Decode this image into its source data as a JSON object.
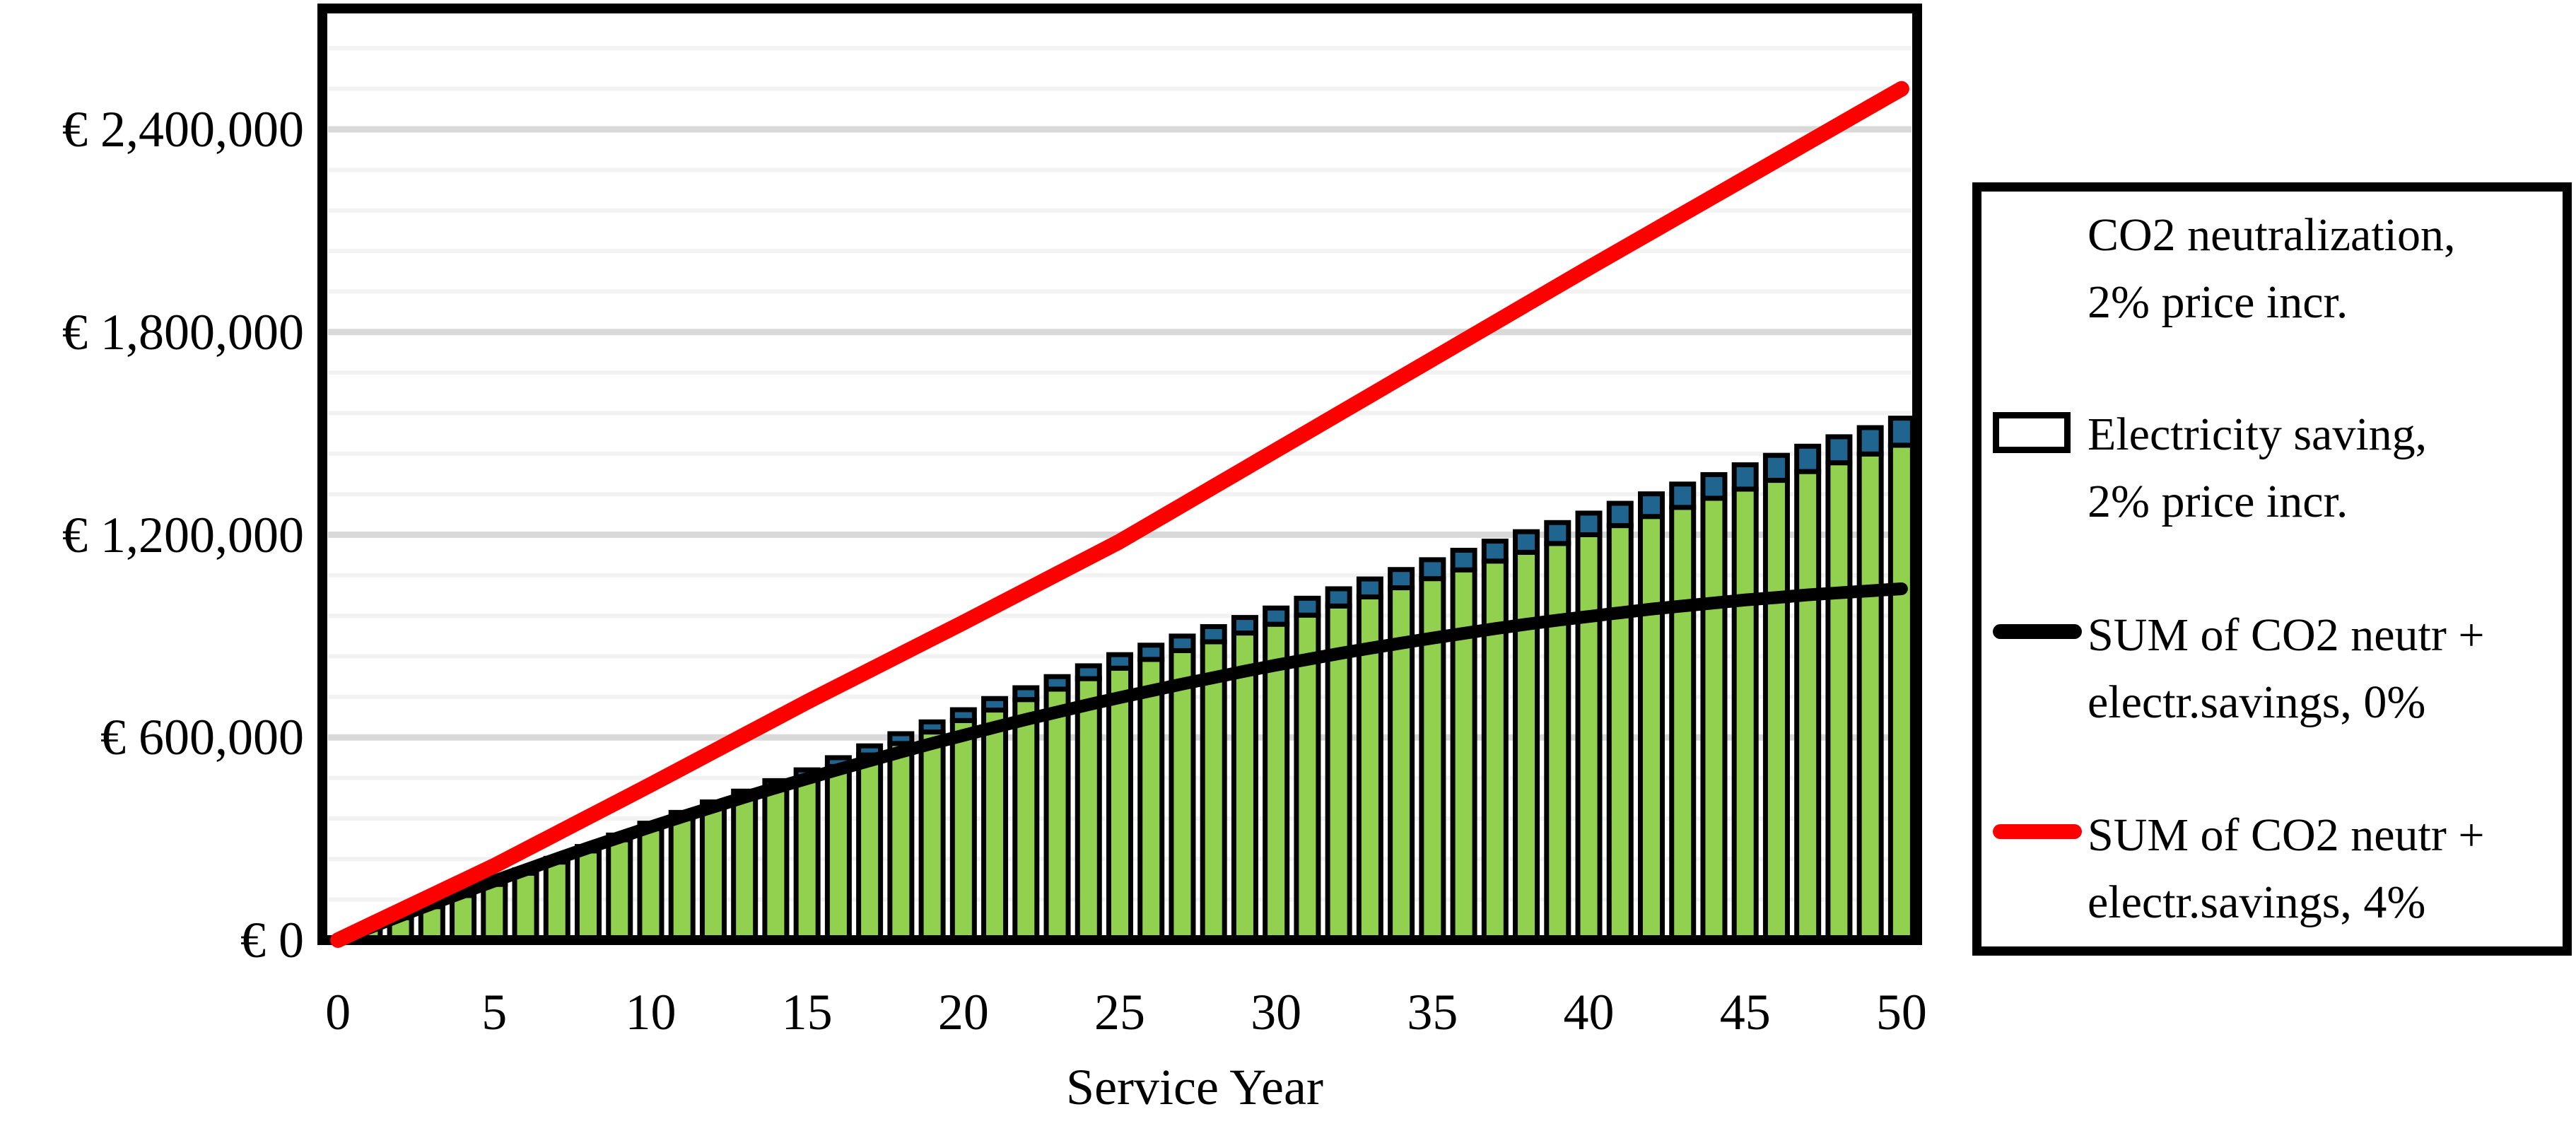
{
  "chart_data": {
    "type": "bar",
    "subtype": "stacked-bars-with-lines",
    "title": "",
    "xlabel": "Service Year",
    "ylabel": "",
    "x": [
      0,
      1,
      2,
      3,
      4,
      5,
      6,
      7,
      8,
      9,
      10,
      11,
      12,
      13,
      14,
      15,
      16,
      17,
      18,
      19,
      20,
      21,
      22,
      23,
      24,
      25,
      26,
      27,
      28,
      29,
      30,
      31,
      32,
      33,
      34,
      35,
      36,
      37,
      38,
      39,
      40,
      41,
      42,
      43,
      44,
      45,
      46,
      47,
      48,
      49,
      50
    ],
    "x_ticks": [
      0,
      5,
      10,
      15,
      20,
      25,
      30,
      35,
      40,
      45,
      50
    ],
    "y_ticks": [
      0,
      600000,
      1200000,
      1800000,
      2400000
    ],
    "y_tick_labels": [
      "€ 0",
      "€ 600,000",
      "€ 1,200,000",
      "€ 1,800,000",
      "€ 2,400,000"
    ],
    "ylim": [
      0,
      2760000
    ],
    "major_unit": 600000,
    "minor_unit": 120000,
    "grid": "horizontal",
    "legend_position": "right",
    "colors": {
      "co2_bar": "#1F6590",
      "electricity_bar": "#92D050",
      "sum0_line": "#000000",
      "sum4_line": "#FF0000",
      "major_grid": "#D9D9D9",
      "minor_grid": "#F2F2F2",
      "frame": "#000000"
    },
    "series": [
      {
        "name": "CO2 neutralization, 2% price incr.",
        "type": "bar",
        "stack_order": "top",
        "color": "#1F6590",
        "values": [
          0,
          2000,
          3000,
          5000,
          6000,
          8000,
          10000,
          11000,
          13000,
          14000,
          16000,
          18000,
          19000,
          21000,
          22000,
          24000,
          26000,
          27000,
          29000,
          30000,
          32000,
          34000,
          35000,
          37000,
          38000,
          40000,
          42000,
          43000,
          45000,
          46000,
          48000,
          50000,
          51000,
          53000,
          54000,
          56000,
          58000,
          59000,
          61000,
          62000,
          64000,
          66000,
          67000,
          69000,
          70000,
          72000,
          74000,
          75000,
          77000,
          78000,
          80000
        ]
      },
      {
        "name": "Electricity saving, 2% price incr.",
        "type": "bar",
        "stack_order": "base",
        "color": "#92D050",
        "values": [
          0,
          33000,
          66000,
          99000,
          132000,
          165000,
          198000,
          231000,
          264000,
          297000,
          330000,
          360000,
          390000,
          420000,
          450000,
          480000,
          514000,
          548000,
          582000,
          616000,
          650000,
          681000,
          712000,
          743000,
          774000,
          805000,
          831000,
          857000,
          883000,
          909000,
          935000,
          962000,
          989000,
          1016000,
          1043000,
          1070000,
          1096000,
          1122000,
          1148000,
          1174000,
          1200000,
          1227000,
          1254000,
          1281000,
          1308000,
          1335000,
          1361000,
          1387000,
          1413000,
          1439000,
          1465000
        ]
      },
      {
        "name": "SUM of CO2 neutr + electr.savings, 0%",
        "type": "line",
        "color": "#000000",
        "values": [
          0,
          36000,
          72000,
          107000,
          141000,
          175000,
          208000,
          241000,
          273000,
          304000,
          335000,
          365000,
          394000,
          423000,
          451000,
          478000,
          505000,
          531000,
          557000,
          582000,
          606000,
          630000,
          653000,
          675000,
          697000,
          718000,
          738000,
          758000,
          777000,
          796000,
          814000,
          831000,
          848000,
          864000,
          879000,
          894000,
          908000,
          922000,
          935000,
          947000,
          958000,
          969000,
          980000,
          989000,
          998000,
          1007000,
          1014000,
          1022000,
          1028000,
          1034000,
          1040000
        ]
      },
      {
        "name": "SUM of CO2 neutr + electr.savings, 4%",
        "type": "line",
        "color": "#FF0000",
        "values": [
          0,
          44000,
          88000,
          132000,
          176000,
          220000,
          268000,
          316000,
          364000,
          412000,
          460000,
          509000,
          558000,
          607000,
          656000,
          705000,
          752000,
          799000,
          846000,
          893000,
          940000,
          988000,
          1036000,
          1084000,
          1132000,
          1180000,
          1234000,
          1288000,
          1342000,
          1396000,
          1450000,
          1504000,
          1558000,
          1612000,
          1666000,
          1720000,
          1774000,
          1828000,
          1882000,
          1936000,
          1990000,
          2043000,
          2096000,
          2149000,
          2202000,
          2255000,
          2308000,
          2361000,
          2414000,
          2467000,
          2520000
        ]
      }
    ]
  },
  "axis": {
    "xlabel": "Service Year"
  },
  "legend": {
    "entries": [
      {
        "swatch": "blue-rect",
        "color": "#1F6590",
        "line1": "CO2 neutralization,",
        "line2": "2% price incr."
      },
      {
        "swatch": "green-rect",
        "color": "#92D050",
        "line1": "Electricity saving,",
        "line2": "2% price incr."
      },
      {
        "swatch": "black-line",
        "color": "#000000",
        "line1": "SUM of CO2 neutr +",
        "line2": "electr.savings, 0%"
      },
      {
        "swatch": "red-line",
        "color": "#FF0000",
        "line1": "SUM of CO2 neutr +",
        "line2": "electr.savings, 4%"
      }
    ]
  }
}
